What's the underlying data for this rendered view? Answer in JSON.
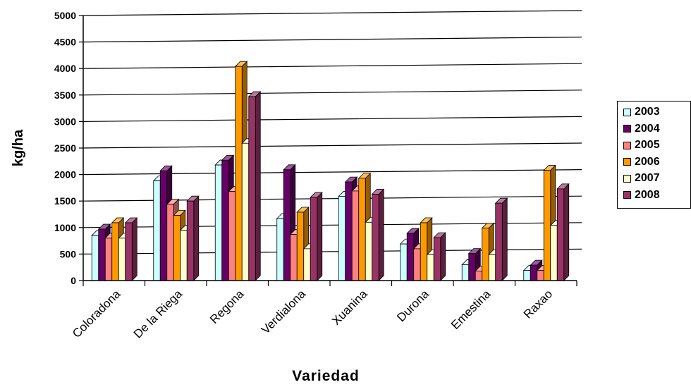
{
  "chart_data": {
    "type": "bar",
    "title": "",
    "xlabel": "Variedad",
    "ylabel": "kg/ha",
    "ylim": [
      0,
      5000
    ],
    "yticks": [
      "0",
      "500",
      "1000",
      "1500",
      "2000",
      "2500",
      "3000",
      "3500",
      "4000",
      "4500",
      "5000"
    ],
    "grid": true,
    "legend_position": "right",
    "categories": [
      "Coloradona",
      "De la Riega",
      "Regona",
      "Verdialona",
      "Xuanina",
      "Durona",
      "Emestina",
      "Raxao"
    ],
    "series": [
      {
        "name": "2003",
        "color": "#ccffff",
        "values": [
          850,
          1880,
          2180,
          1170,
          1590,
          690,
          300,
          190
        ]
      },
      {
        "name": "2004",
        "color": "#660066",
        "values": [
          970,
          2070,
          2270,
          2090,
          1860,
          890,
          510,
          290
        ]
      },
      {
        "name": "2005",
        "color": "#ff8080",
        "values": [
          800,
          1440,
          1680,
          870,
          1690,
          600,
          180,
          190
        ]
      },
      {
        "name": "2006",
        "color": "#ff9900",
        "values": [
          1090,
          1230,
          4040,
          1290,
          1930,
          1090,
          990,
          2080
        ]
      },
      {
        "name": "2007",
        "color": "#ffffcc",
        "values": [
          800,
          950,
          2590,
          600,
          1100,
          490,
          490,
          1040
        ]
      },
      {
        "name": "2008",
        "color": "#993366",
        "values": [
          1090,
          1500,
          3470,
          1570,
          1630,
          810,
          1460,
          1730
        ]
      }
    ]
  }
}
